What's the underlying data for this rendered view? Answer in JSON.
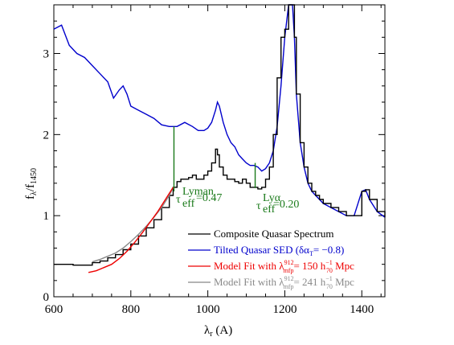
{
  "chart_data": {
    "type": "line",
    "xlabel": {
      "main": "λ",
      "sub": "r",
      "unit": " (A)"
    },
    "ylabel": {
      "main": "f",
      "sub1": "λ",
      "mid": "/f",
      "sub2": "1450"
    },
    "xlim": [
      600,
      1460
    ],
    "ylim": [
      0,
      3.6
    ],
    "xticks": [
      600,
      800,
      1000,
      1200,
      1400
    ],
    "yticks": [
      0,
      1,
      2,
      3
    ],
    "colors": {
      "composite": "#000000",
      "tilted": "#0000cc",
      "model150": "#ee0000",
      "model241": "#888888",
      "annotation": "#1a7a1a"
    },
    "series": [
      {
        "key": "tilted",
        "name": "Tilted Quasar SED (δα",
        "x": [
          600,
          620,
          640,
          660,
          680,
          700,
          720,
          740,
          755,
          770,
          780,
          790,
          800,
          820,
          840,
          860,
          880,
          900,
          920,
          940,
          960,
          975,
          990,
          1000,
          1010,
          1020,
          1025,
          1030,
          1040,
          1050,
          1060,
          1070,
          1080,
          1090,
          1100,
          1110,
          1120,
          1130,
          1140,
          1150,
          1160,
          1170,
          1180,
          1190,
          1200,
          1210,
          1215,
          1220,
          1225,
          1230,
          1240,
          1250,
          1260,
          1270,
          1280,
          1290,
          1300,
          1320,
          1340,
          1360,
          1380,
          1400,
          1410,
          1420,
          1440,
          1460
        ],
        "y": [
          3.3,
          3.35,
          3.1,
          3.0,
          2.95,
          2.85,
          2.75,
          2.65,
          2.45,
          2.55,
          2.6,
          2.5,
          2.35,
          2.3,
          2.25,
          2.2,
          2.12,
          2.1,
          2.1,
          2.15,
          2.1,
          2.05,
          2.05,
          2.08,
          2.15,
          2.3,
          2.4,
          2.35,
          2.15,
          2.0,
          1.9,
          1.85,
          1.75,
          1.7,
          1.65,
          1.62,
          1.62,
          1.6,
          1.55,
          1.58,
          1.65,
          1.8,
          2.1,
          2.6,
          3.2,
          3.6,
          3.7,
          3.6,
          3.2,
          2.5,
          1.9,
          1.6,
          1.4,
          1.3,
          1.25,
          1.2,
          1.15,
          1.1,
          1.05,
          1.0,
          1.0,
          1.3,
          1.32,
          1.2,
          1.05,
          0.98
        ]
      },
      {
        "key": "composite",
        "name": "Composite Quasar Spectrum",
        "x": [
          600,
          650,
          700,
          720,
          740,
          760,
          780,
          800,
          820,
          840,
          860,
          880,
          900,
          910,
          920,
          930,
          940,
          950,
          960,
          970,
          980,
          990,
          1000,
          1010,
          1020,
          1025,
          1030,
          1040,
          1050,
          1060,
          1070,
          1080,
          1090,
          1100,
          1110,
          1120,
          1130,
          1140,
          1150,
          1160,
          1170,
          1180,
          1190,
          1200,
          1210,
          1215,
          1220,
          1225,
          1230,
          1240,
          1250,
          1260,
          1270,
          1280,
          1290,
          1300,
          1320,
          1340,
          1360,
          1380,
          1400,
          1410,
          1420,
          1440,
          1460
        ],
        "y": [
          0.4,
          0.39,
          0.42,
          0.44,
          0.48,
          0.52,
          0.58,
          0.65,
          0.75,
          0.85,
          0.95,
          1.1,
          1.25,
          1.35,
          1.42,
          1.45,
          1.45,
          1.47,
          1.5,
          1.45,
          1.45,
          1.5,
          1.55,
          1.65,
          1.82,
          1.75,
          1.6,
          1.5,
          1.45,
          1.45,
          1.42,
          1.4,
          1.45,
          1.4,
          1.35,
          1.35,
          1.33,
          1.35,
          1.45,
          1.6,
          2.0,
          2.7,
          3.2,
          3.3,
          3.7,
          3.75,
          3.65,
          3.2,
          2.5,
          1.9,
          1.6,
          1.4,
          1.3,
          1.25,
          1.2,
          1.15,
          1.1,
          1.05,
          1.0,
          1.0,
          1.3,
          1.32,
          1.2,
          1.05,
          0.98
        ]
      },
      {
        "key": "model241",
        "name": "Model Fit with λ",
        "x": [
          700,
          720,
          740,
          760,
          780,
          800,
          820,
          840,
          860,
          880,
          900,
          910
        ],
        "y": [
          0.43,
          0.46,
          0.5,
          0.54,
          0.6,
          0.68,
          0.77,
          0.87,
          0.98,
          1.1,
          1.25,
          1.35
        ]
      },
      {
        "key": "model150",
        "name": "Model Fit with λ",
        "x": [
          690,
          710,
          730,
          750,
          770,
          790,
          810,
          830,
          850,
          870,
          890,
          910
        ],
        "y": [
          0.3,
          0.32,
          0.36,
          0.4,
          0.47,
          0.56,
          0.67,
          0.79,
          0.92,
          1.05,
          1.2,
          1.35
        ]
      }
    ],
    "markers": [
      {
        "x": 912,
        "y_low": 1.3,
        "y_high": 2.1
      },
      {
        "x": 1123,
        "y_low": 1.34,
        "y_high": 1.65
      }
    ],
    "annotations": {
      "tau_lyman": {
        "tau": "τ",
        "sup": "Lyman",
        "sub": "eff",
        "value": "=0.47"
      },
      "tau_lya": {
        "tau": "τ",
        "sup": "Lyα",
        "sub": "eff",
        "value": "=0.20"
      }
    },
    "legend": {
      "placement": "lower-right",
      "entries": [
        {
          "key": "composite",
          "text": "Composite Quasar Spectrum"
        },
        {
          "key": "tilted",
          "text": "Tilted Quasar SED (δα",
          "sub": "T",
          "tail": "= −0.8)"
        },
        {
          "key": "model150",
          "text": "Model Fit with λ",
          "sup": "912",
          "sub": "mfp",
          "tail": "= 150 h",
          "sup2": "−1",
          "sub2": "70",
          "tail2": " Mpc"
        },
        {
          "key": "model241",
          "text": "Model Fit with λ",
          "sup": "912",
          "sub": "mfp",
          "tail": "= 241 h",
          "sup2": "−1",
          "sub2": "70",
          "tail2": " Mpc"
        }
      ]
    }
  }
}
